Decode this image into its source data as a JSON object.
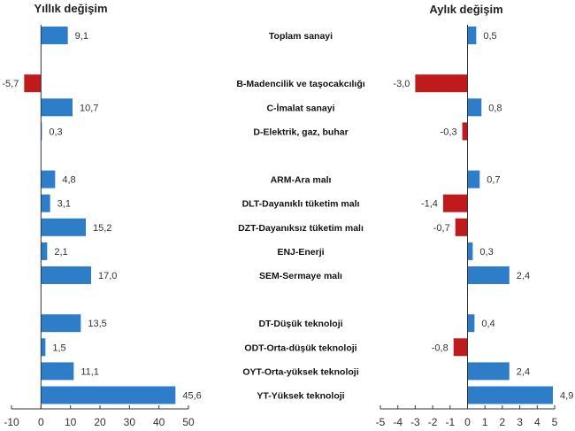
{
  "chart_data": [
    {
      "type": "bar",
      "orientation": "horizontal",
      "title": "Yıllık değişim",
      "categories": [
        "Toplam sanayi",
        "B-Madencilik ve taşocakcılığı",
        "C-İmalat sanayi",
        "D-Elektrik, gaz, buhar",
        "ARM-Ara malı",
        "DLT-Dayanıklı tüketim malı",
        "DZT-Dayanıksız tüketim malı",
        "ENJ-Enerji",
        "SEM-Sermaye malı",
        "DT-Düşük teknoloji",
        "ODT-Orta-düşük teknoloji",
        "OYT-Orta-yüksek teknoloji",
        "YT-Yüksek teknoloji"
      ],
      "values": [
        9.1,
        -5.7,
        10.7,
        0.3,
        4.8,
        3.1,
        15.2,
        2.1,
        17.0,
        13.5,
        1.5,
        11.1,
        45.6
      ],
      "labels": [
        "9,1",
        "-5,7",
        "10,7",
        "0,3",
        "4,8",
        "3,1",
        "15,2",
        "2,1",
        "17,0",
        "13,5",
        "1,5",
        "11,1",
        "45,6"
      ],
      "xlim": [
        -10,
        50
      ],
      "ticks": [
        "-10",
        "0",
        "10",
        "20",
        "30",
        "40",
        "50"
      ],
      "tick_values": [
        -10,
        0,
        10,
        20,
        30,
        40,
        50
      ],
      "grid": false
    },
    {
      "type": "bar",
      "orientation": "horizontal",
      "title": "Aylık değişim",
      "categories": [
        "Toplam sanayi",
        "B-Madencilik ve taşocakcılığı",
        "C-İmalat sanayi",
        "D-Elektrik, gaz, buhar",
        "ARM-Ara malı",
        "DLT-Dayanıklı tüketim malı",
        "DZT-Dayanıksız tüketim malı",
        "ENJ-Enerji",
        "SEM-Sermaye malı",
        "DT-Düşük teknoloji",
        "ODT-Orta-düşük teknoloji",
        "OYT-Orta-yüksek teknoloji",
        "YT-Yüksek teknoloji"
      ],
      "values": [
        0.5,
        -3.0,
        0.8,
        -0.3,
        0.7,
        -1.4,
        -0.7,
        0.3,
        2.4,
        0.4,
        -0.8,
        2.4,
        4.9
      ],
      "labels": [
        "0,5",
        "-3,0",
        "0,8",
        "-0,3",
        "0,7",
        "-1,4",
        "-0,7",
        "0,3",
        "2,4",
        "0,4",
        "-0,8",
        "2,4",
        "4,9"
      ],
      "xlim": [
        -5,
        5
      ],
      "ticks": [
        "-5",
        "-4",
        "-3",
        "-2",
        "-1",
        "0",
        "1",
        "2",
        "3",
        "4",
        "5"
      ],
      "tick_values": [
        -5,
        -4,
        -3,
        -2,
        -1,
        0,
        1,
        2,
        3,
        4,
        5
      ],
      "grid": false
    }
  ],
  "colors": {
    "positive": "#2e7dc9",
    "negative": "#bf1a1c",
    "axis": "#333333"
  }
}
